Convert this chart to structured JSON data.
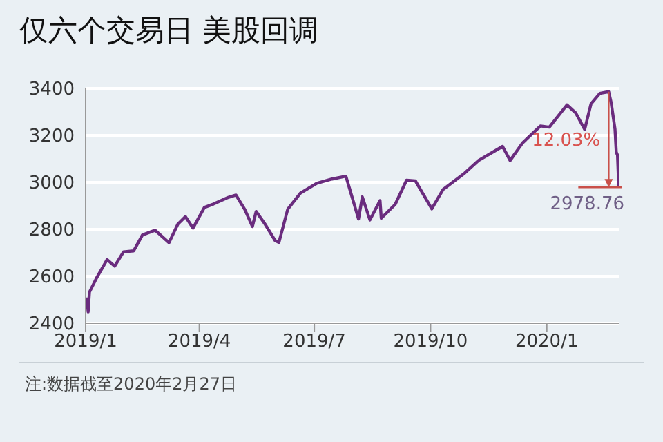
{
  "chart_data": {
    "type": "line",
    "title": "仅六个交易日 美股回调",
    "x": [
      "2019-01-02",
      "2019-01-03",
      "2019-01-04",
      "2019-01-10",
      "2019-01-18",
      "2019-01-24",
      "2019-01-31",
      "2019-02-08",
      "2019-02-15",
      "2019-02-25",
      "2019-03-08",
      "2019-03-15",
      "2019-03-21",
      "2019-03-27",
      "2019-04-05",
      "2019-04-12",
      "2019-04-23",
      "2019-04-30",
      "2019-05-07",
      "2019-05-13",
      "2019-05-16",
      "2019-05-23",
      "2019-05-31",
      "2019-06-03",
      "2019-06-10",
      "2019-06-20",
      "2019-07-03",
      "2019-07-15",
      "2019-07-26",
      "2019-08-05",
      "2019-08-08",
      "2019-08-14",
      "2019-08-22",
      "2019-08-23",
      "2019-09-03",
      "2019-09-12",
      "2019-09-19",
      "2019-10-02",
      "2019-10-11",
      "2019-10-28",
      "2019-11-08",
      "2019-11-27",
      "2019-12-03",
      "2019-12-13",
      "2019-12-27",
      "2020-01-03",
      "2020-01-17",
      "2020-01-24",
      "2020-01-31",
      "2020-02-05",
      "2020-02-12",
      "2020-02-19",
      "2020-02-21",
      "2020-02-24",
      "2020-02-25",
      "2020-02-26",
      "2020-02-27"
    ],
    "series": [
      {
        "color": "#6a2c7e",
        "values": [
          2510,
          2448,
          2532,
          2596,
          2671,
          2643,
          2704,
          2708,
          2776,
          2796,
          2743,
          2822,
          2854,
          2805,
          2893,
          2907,
          2934,
          2946,
          2884,
          2812,
          2876,
          2822,
          2752,
          2744,
          2886,
          2954,
          2996,
          3014,
          3026,
          2844,
          2938,
          2840,
          2922,
          2847,
          2906,
          3009,
          3006,
          2887,
          2970,
          3039,
          3093,
          3153,
          3093,
          3169,
          3240,
          3235,
          3330,
          3295,
          3225,
          3334,
          3379,
          3386,
          3338,
          3226,
          3128,
          3116,
          2978.76
        ]
      }
    ],
    "xlim": [
      "2019-01-01",
      "2020-02-27"
    ],
    "xticks": [
      {
        "value": "2019-01-01",
        "label": "2019/1"
      },
      {
        "value": "2019-04-01",
        "label": "2019/4"
      },
      {
        "value": "2019-07-01",
        "label": "2019/7"
      },
      {
        "value": "2019-10-01",
        "label": "2019/10"
      },
      {
        "value": "2020-01-01",
        "label": "2020/1"
      }
    ],
    "ylim": [
      2400,
      3400
    ],
    "yticks": [
      2400,
      2600,
      2800,
      3000,
      3200,
      3400
    ],
    "grid": "y",
    "legend": false,
    "line_style": "solid",
    "marker": "none",
    "annotations": [
      {
        "text": "12.03%",
        "x": "2020-02-19",
        "y": 3180
      },
      {
        "text": "2978.76",
        "x": "2020-02-27",
        "y": 2978.76
      },
      "注:数据截至2020年2月27日"
    ]
  }
}
